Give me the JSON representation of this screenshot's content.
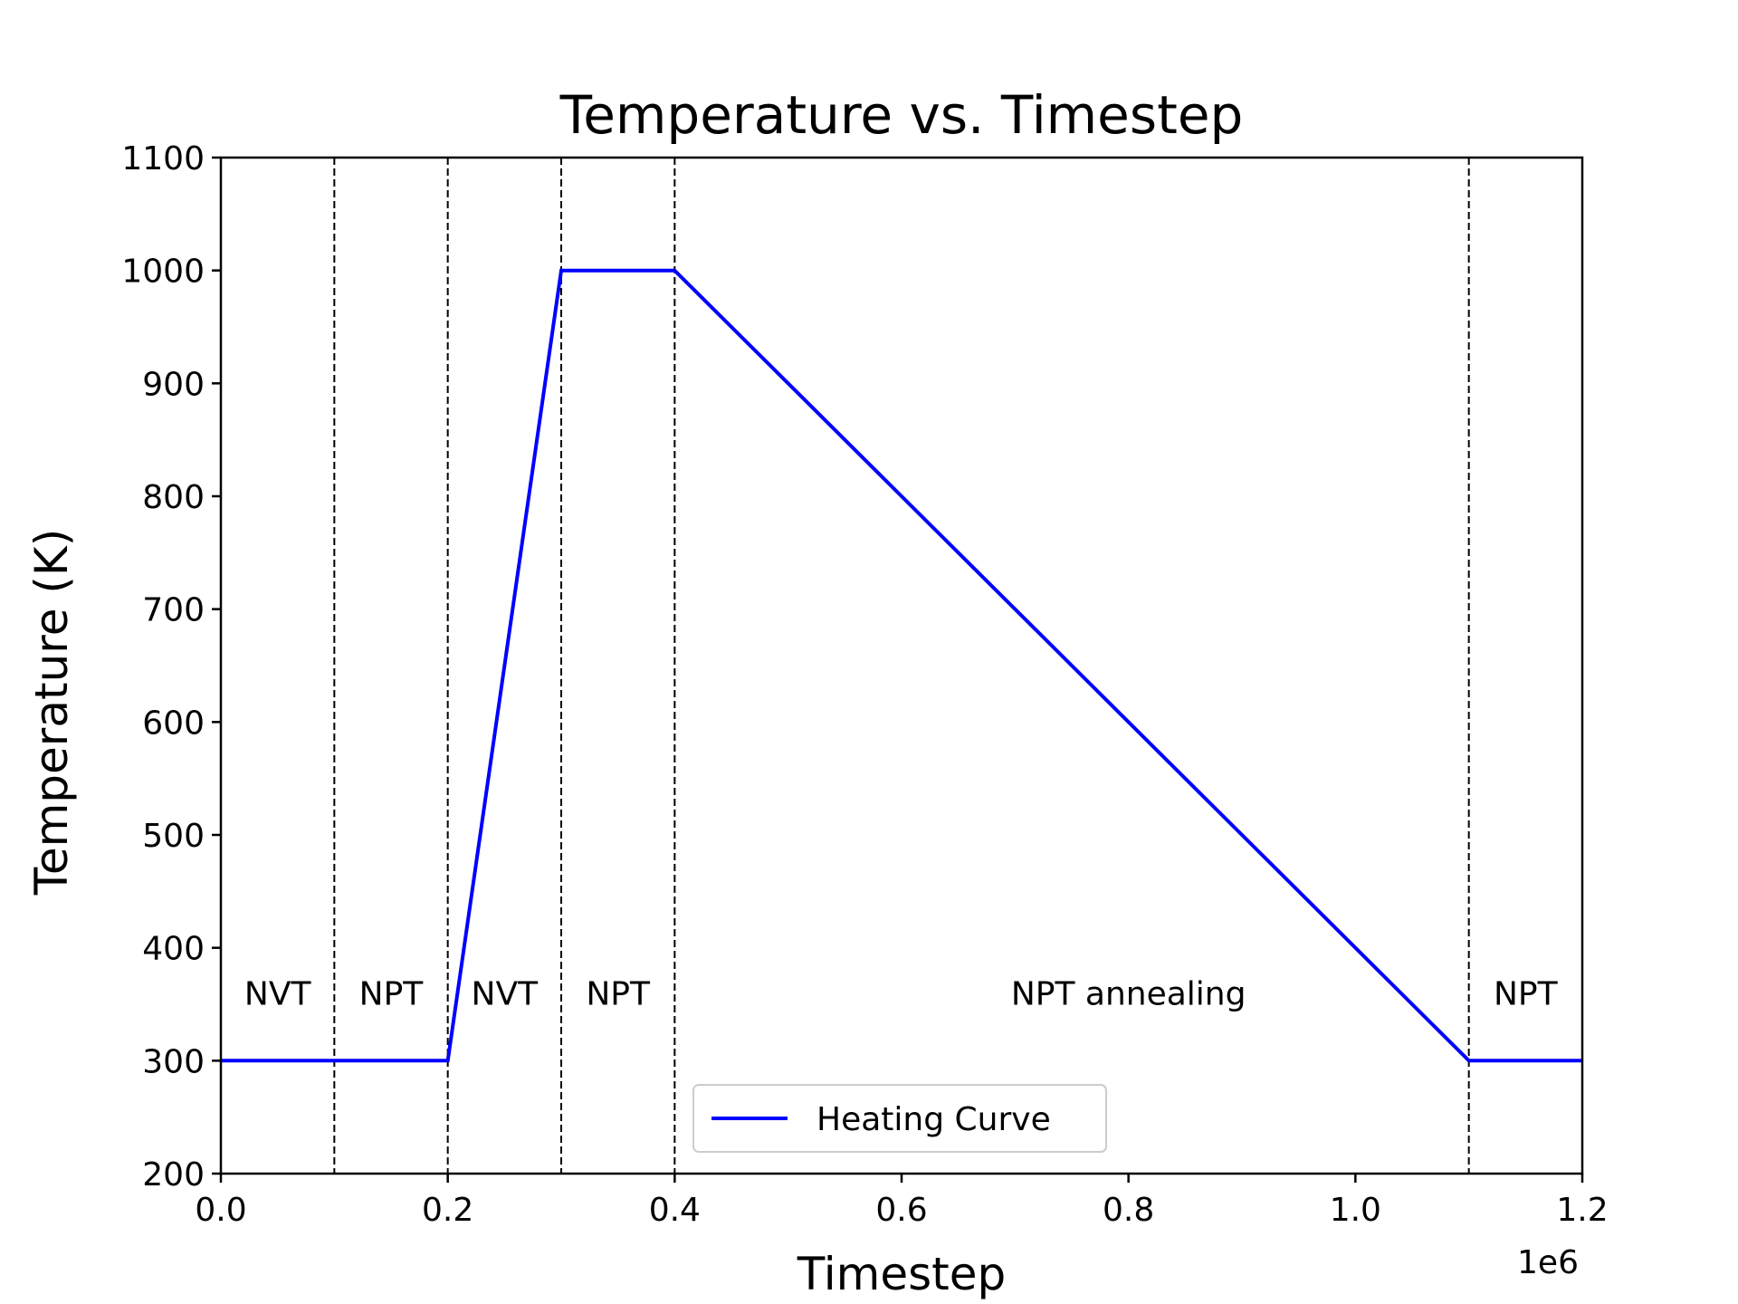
{
  "chart_data": {
    "type": "line",
    "title": "Temperature vs. Timestep",
    "xlabel": "Timestep",
    "ylabel": "Temperature (K)",
    "x_offset_text": "1e6",
    "xlim": [
      0.0,
      1.2
    ],
    "ylim": [
      200,
      1100
    ],
    "x_ticks": [
      0.0,
      0.2,
      0.4,
      0.6,
      0.8,
      1.0,
      1.2
    ],
    "x_tick_labels": [
      "0.0",
      "0.2",
      "0.4",
      "0.6",
      "0.8",
      "1.0",
      "1.2"
    ],
    "y_ticks": [
      200,
      300,
      400,
      500,
      600,
      700,
      800,
      900,
      1000,
      1100
    ],
    "y_tick_labels": [
      "200",
      "300",
      "400",
      "500",
      "600",
      "700",
      "800",
      "900",
      "1000",
      "1100"
    ],
    "grid": false,
    "legend_position": "bottom-center",
    "series": [
      {
        "name": "Heating Curve",
        "color": "#0000ff",
        "x": [
          0.0,
          0.1,
          0.2,
          0.3,
          0.4,
          1.1,
          1.2
        ],
        "y": [
          300,
          300,
          300,
          1000,
          1000,
          300,
          300
        ]
      }
    ],
    "vertical_lines": {
      "x": [
        0.1,
        0.2,
        0.3,
        0.4,
        1.1
      ],
      "style": "dashed",
      "color": "#000000"
    },
    "annotations": [
      {
        "text": "NVT",
        "x": 0.05,
        "y": 360
      },
      {
        "text": "NPT",
        "x": 0.15,
        "y": 360
      },
      {
        "text": "NVT",
        "x": 0.25,
        "y": 360
      },
      {
        "text": "NPT",
        "x": 0.35,
        "y": 360
      },
      {
        "text": "NPT annealing",
        "x": 0.8,
        "y": 360
      },
      {
        "text": "NPT",
        "x": 1.15,
        "y": 360
      }
    ]
  }
}
